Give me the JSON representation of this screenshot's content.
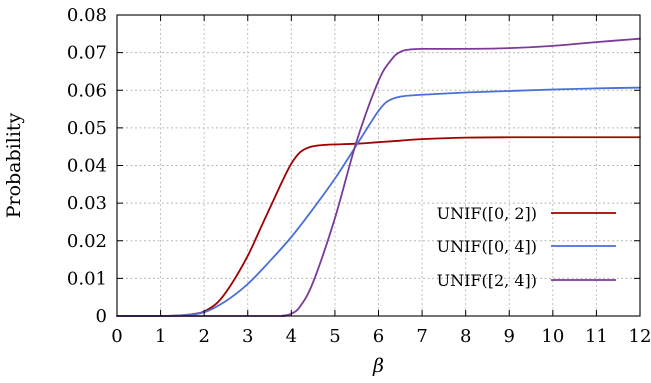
{
  "chart_data": {
    "type": "line",
    "xlabel": "β",
    "ylabel": "Probability",
    "xlim": [
      0,
      12
    ],
    "ylim": [
      0,
      0.08
    ],
    "x_ticks": [
      "0",
      "1",
      "2",
      "3",
      "4",
      "5",
      "6",
      "7",
      "8",
      "9",
      "10",
      "11",
      "12"
    ],
    "y_ticks": [
      "0",
      "0.01",
      "0.02",
      "0.03",
      "0.04",
      "0.05",
      "0.06",
      "0.07",
      "0.08"
    ],
    "grid": true,
    "legend_position": "bottom-right",
    "series": [
      {
        "name": "UNIF([0, 2])",
        "color": "#a00000",
        "x": [
          0,
          1,
          1.5,
          1.8,
          2,
          2.3,
          2.6,
          3,
          3.3,
          3.6,
          3.8,
          4,
          4.2,
          4.4,
          4.6,
          4.8,
          5,
          5.5,
          6,
          6.5,
          7,
          8,
          9,
          10,
          11,
          12
        ],
        "y": [
          0,
          0,
          0.0002,
          0.0006,
          0.0012,
          0.0035,
          0.008,
          0.016,
          0.0235,
          0.031,
          0.036,
          0.0405,
          0.0435,
          0.0448,
          0.0453,
          0.0455,
          0.0456,
          0.0458,
          0.0462,
          0.0466,
          0.047,
          0.0474,
          0.0475,
          0.0475,
          0.0475,
          0.0475
        ]
      },
      {
        "name": "UNIF([0, 4])",
        "color": "#4a6fd6",
        "x": [
          0,
          1,
          1.5,
          2,
          2.5,
          3,
          3.5,
          4,
          4.5,
          5,
          5.5,
          5.8,
          6,
          6.2,
          6.5,
          7,
          8,
          9,
          10,
          11,
          12
        ],
        "y": [
          0,
          0,
          0.0002,
          0.001,
          0.004,
          0.0085,
          0.0145,
          0.021,
          0.0285,
          0.0365,
          0.0455,
          0.051,
          0.0545,
          0.057,
          0.0583,
          0.0588,
          0.0594,
          0.0598,
          0.0602,
          0.0605,
          0.0607
        ]
      },
      {
        "name": "UNIF([2, 4])",
        "color": "#7a3a9a",
        "x": [
          0,
          3.5,
          3.8,
          4,
          4.2,
          4.5,
          5,
          5.5,
          6,
          6.3,
          6.5,
          6.7,
          7,
          8,
          9,
          10,
          11,
          12
        ],
        "y": [
          0,
          0,
          0.0001,
          0.0006,
          0.0025,
          0.009,
          0.026,
          0.0465,
          0.0625,
          0.0682,
          0.0702,
          0.0708,
          0.071,
          0.071,
          0.0712,
          0.0718,
          0.0728,
          0.0737
        ]
      }
    ]
  }
}
